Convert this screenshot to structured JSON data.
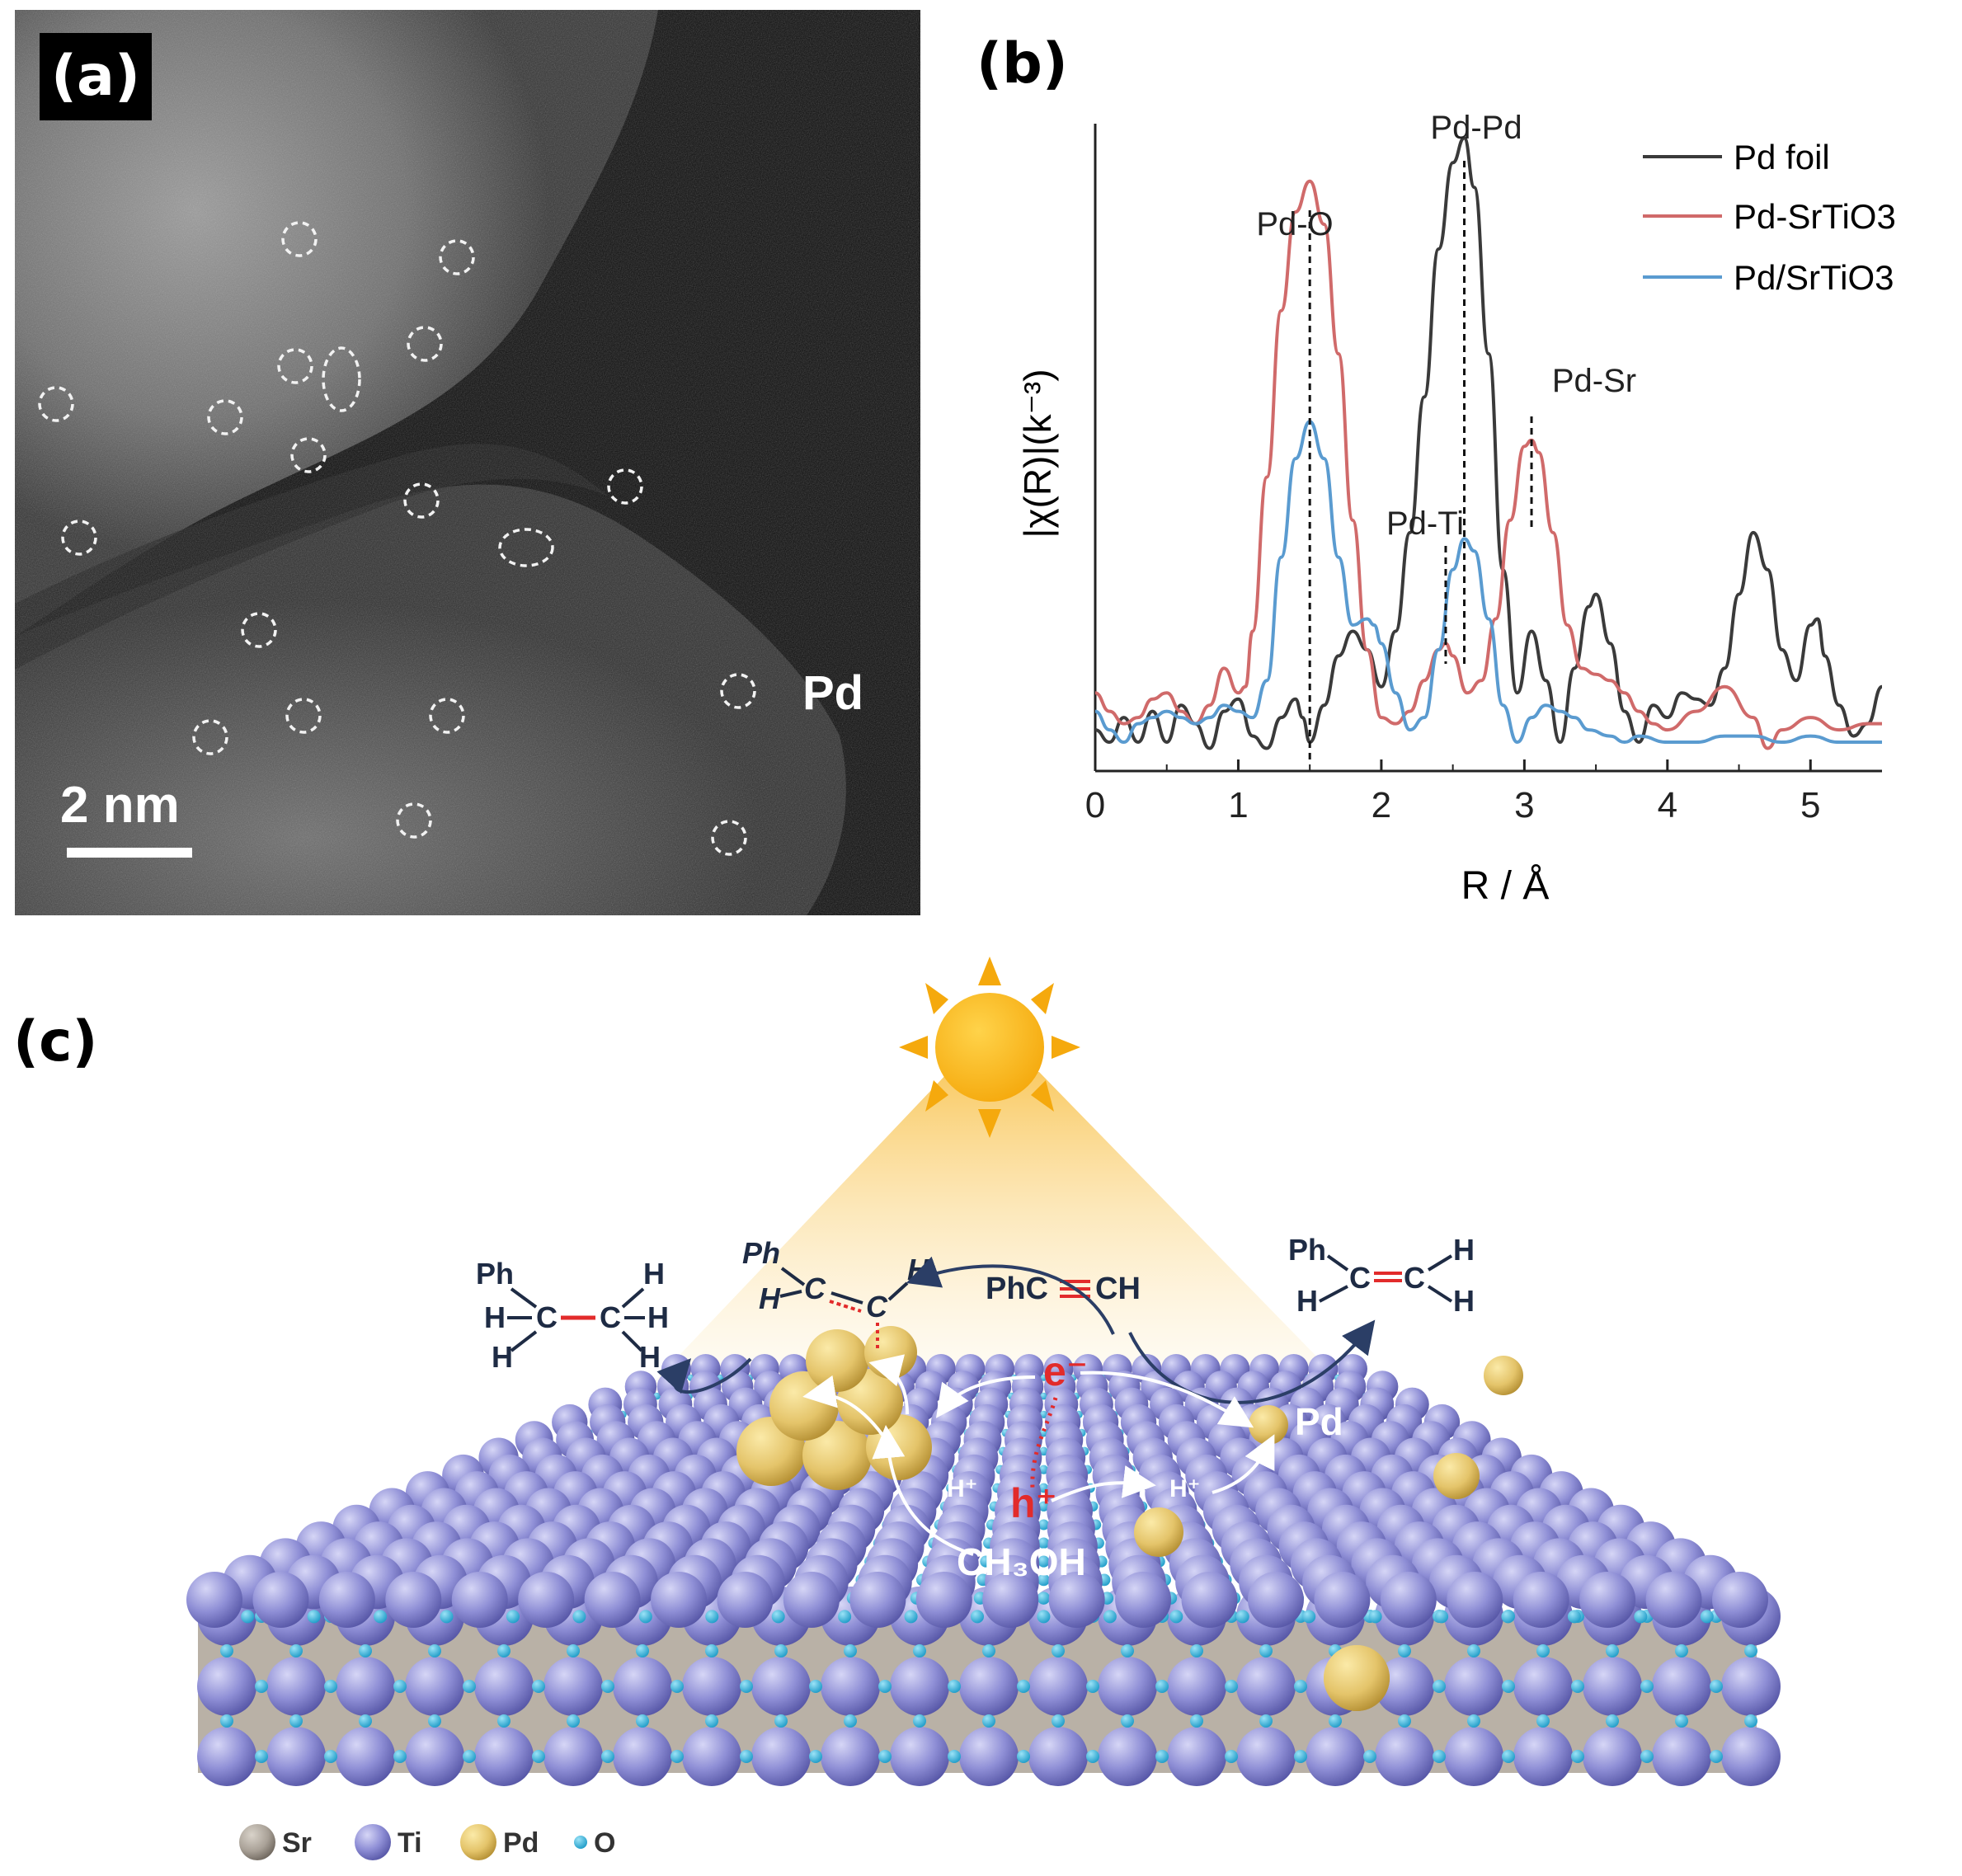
{
  "panel_a": {
    "label": "(a)",
    "scale_bar_text": "2 nm",
    "atom_label": "Pd"
  },
  "panel_b": {
    "label": "(b)",
    "peak_labels": [
      "Pd-O",
      "Pd-Pd",
      "Pd-Ti",
      "Pd-Sr"
    ],
    "chart_data": {
      "type": "line",
      "xlabel": "R / Å",
      "ylabel": "|χ(R)|(k⁻³)",
      "xlim": [
        0,
        5.5
      ],
      "ylim": [
        0,
        1.05
      ],
      "x_ticks": [
        0,
        1,
        2,
        3,
        4,
        5
      ],
      "legend_placement": "top-right",
      "series": [
        {
          "name": "Pd foil",
          "color": "#3a3a3a",
          "x": [
            0.0,
            0.1,
            0.2,
            0.3,
            0.4,
            0.5,
            0.6,
            0.7,
            0.8,
            0.9,
            1.0,
            1.1,
            1.2,
            1.3,
            1.4,
            1.45,
            1.5,
            1.6,
            1.7,
            1.8,
            1.9,
            2.0,
            2.1,
            2.2,
            2.3,
            2.4,
            2.5,
            2.58,
            2.65,
            2.75,
            2.85,
            2.95,
            3.05,
            3.15,
            3.25,
            3.35,
            3.45,
            3.5,
            3.6,
            3.7,
            3.8,
            3.9,
            4.0,
            4.1,
            4.2,
            4.3,
            4.4,
            4.5,
            4.6,
            4.7,
            4.8,
            4.9,
            5.0,
            5.05,
            5.1,
            5.2,
            5.3,
            5.4,
            5.5
          ],
          "y": [
            0.04,
            0.02,
            0.06,
            0.02,
            0.07,
            0.02,
            0.08,
            0.05,
            0.01,
            0.07,
            0.09,
            0.03,
            0.01,
            0.06,
            0.09,
            0.06,
            0.02,
            0.08,
            0.16,
            0.2,
            0.17,
            0.11,
            0.2,
            0.36,
            0.58,
            0.82,
            0.96,
            1.0,
            0.92,
            0.65,
            0.3,
            0.1,
            0.2,
            0.12,
            0.02,
            0.14,
            0.24,
            0.26,
            0.18,
            0.07,
            0.02,
            0.08,
            0.06,
            0.1,
            0.09,
            0.08,
            0.14,
            0.26,
            0.36,
            0.3,
            0.17,
            0.12,
            0.21,
            0.22,
            0.16,
            0.08,
            0.03,
            0.05,
            0.11
          ]
        },
        {
          "name": "Pd-SrTiO3",
          "color": "#d06a6a",
          "x": [
            0.0,
            0.1,
            0.2,
            0.3,
            0.4,
            0.5,
            0.6,
            0.7,
            0.8,
            0.9,
            1.0,
            1.05,
            1.1,
            1.2,
            1.3,
            1.4,
            1.5,
            1.6,
            1.7,
            1.8,
            1.9,
            2.0,
            2.1,
            2.2,
            2.3,
            2.4,
            2.45,
            2.5,
            2.6,
            2.7,
            2.8,
            2.9,
            3.0,
            3.05,
            3.1,
            3.2,
            3.3,
            3.4,
            3.5,
            3.6,
            3.7,
            3.8,
            3.9,
            4.0,
            4.2,
            4.4,
            4.6,
            4.7,
            4.8,
            5.0,
            5.2,
            5.4,
            5.5
          ],
          "y": [
            0.1,
            0.07,
            0.05,
            0.06,
            0.09,
            0.1,
            0.07,
            0.05,
            0.08,
            0.14,
            0.1,
            0.11,
            0.2,
            0.45,
            0.72,
            0.88,
            0.93,
            0.86,
            0.65,
            0.38,
            0.17,
            0.06,
            0.05,
            0.07,
            0.12,
            0.17,
            0.18,
            0.16,
            0.1,
            0.12,
            0.22,
            0.38,
            0.5,
            0.51,
            0.49,
            0.36,
            0.21,
            0.14,
            0.13,
            0.12,
            0.1,
            0.07,
            0.05,
            0.04,
            0.07,
            0.11,
            0.06,
            0.01,
            0.04,
            0.06,
            0.04,
            0.05,
            0.05
          ]
        },
        {
          "name": "Pd/SrTiO3",
          "color": "#5a9bd0",
          "x": [
            0.0,
            0.1,
            0.2,
            0.3,
            0.4,
            0.5,
            0.6,
            0.7,
            0.8,
            0.9,
            1.0,
            1.1,
            1.2,
            1.3,
            1.4,
            1.5,
            1.6,
            1.7,
            1.8,
            1.9,
            1.95,
            2.0,
            2.1,
            2.2,
            2.3,
            2.4,
            2.5,
            2.58,
            2.65,
            2.75,
            2.85,
            2.95,
            3.05,
            3.15,
            3.25,
            3.35,
            3.45,
            3.6,
            3.7,
            3.8,
            4.0,
            4.2,
            4.4,
            4.6,
            4.8,
            5.0,
            5.2,
            5.4,
            5.5
          ],
          "y": [
            0.07,
            0.04,
            0.02,
            0.05,
            0.06,
            0.07,
            0.06,
            0.05,
            0.06,
            0.08,
            0.07,
            0.06,
            0.12,
            0.32,
            0.48,
            0.54,
            0.48,
            0.32,
            0.21,
            0.22,
            0.21,
            0.18,
            0.1,
            0.04,
            0.06,
            0.17,
            0.3,
            0.35,
            0.33,
            0.22,
            0.08,
            0.02,
            0.06,
            0.08,
            0.07,
            0.06,
            0.04,
            0.03,
            0.02,
            0.03,
            0.02,
            0.02,
            0.03,
            0.03,
            0.02,
            0.03,
            0.02,
            0.02,
            0.02
          ]
        }
      ],
      "vlines": [
        1.5,
        2.58,
        2.45,
        3.05
      ]
    }
  },
  "panel_c": {
    "label": "(c)",
    "molecules": {
      "ethane_ph": "Ph",
      "ethane_h": "H",
      "ethane_c": "C",
      "intermediate_ph": "Ph",
      "alkyne": "PhC≡CH",
      "alkyne_left": "PhC",
      "alkyne_right": "CH",
      "styrene_ph": "Ph",
      "methanol": "CH₃OH"
    },
    "charges": {
      "electron": "e⁻",
      "hole": "h⁺",
      "proton": "H⁺"
    },
    "pd_label": "Pd",
    "legend": [
      {
        "name": "Sr",
        "color": "#a9a197"
      },
      {
        "name": "Ti",
        "color": "#8f8fd6"
      },
      {
        "name": "Pd",
        "color": "#e4c46a"
      },
      {
        "name": "O",
        "color": "#24b3e0"
      }
    ]
  }
}
